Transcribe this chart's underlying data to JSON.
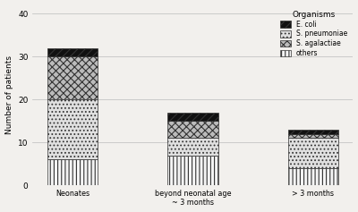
{
  "categories": [
    "Neonates",
    "beyond neonatal age\n~ 3 months",
    "> 3 months"
  ],
  "segments": {
    "others": [
      6,
      7,
      4
    ],
    "S. pneumoniae": [
      14,
      4,
      7
    ],
    "S. agalactiae": [
      10,
      4,
      1
    ],
    "E. coli": [
      2,
      2,
      1
    ]
  },
  "segment_order": [
    "others",
    "S. pneumoniae",
    "S. agalactiae",
    "E. coli"
  ],
  "legend_labels": [
    "E. coli",
    "S. pneumoniae",
    "S. agalactiae",
    "others"
  ],
  "ylabel": "Number of patients",
  "ylim": [
    0,
    42
  ],
  "yticks": [
    0,
    10,
    20,
    30,
    40
  ],
  "bar_width": 0.42,
  "background_color": "#f2f0ed",
  "bar_edge_color": "#333333",
  "hatch_ecoli": "////",
  "hatch_spneumoniae": "....",
  "hatch_sagalactiae": "xxxx",
  "hatch_others": "||||",
  "face_ecoli": "#111111",
  "face_spneumoniae": "#e0e0e0",
  "face_sagalactiae": "#bbbbbb",
  "face_others": "#f5f5f5"
}
